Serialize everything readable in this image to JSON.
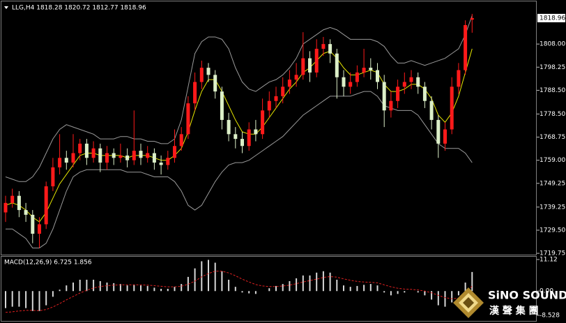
{
  "chart_data": [
    {
      "type": "candlestick",
      "title": "LLG,H4  1818.28 1820.72 1812.77 1818.96",
      "up_color": "#ff1a1a",
      "down_color": "#dcefc8",
      "open": [
        1737,
        1741,
        1744,
        1738,
        1736,
        1728,
        1732,
        1748,
        1756,
        1760,
        1758,
        1762,
        1766,
        1760,
        1764,
        1758,
        1762,
        1760,
        1761,
        1759,
        1763,
        1760,
        1762,
        1758,
        1757,
        1760,
        1765,
        1770,
        1783,
        1792,
        1798,
        1795,
        1788,
        1776,
        1770,
        1768,
        1765,
        1772,
        1770,
        1780,
        1784,
        1786,
        1790,
        1793,
        1795,
        1802,
        1796,
        1806,
        1808,
        1804,
        1794,
        1790,
        1792,
        1796,
        1798,
        1797,
        1792,
        1780,
        1784,
        1790,
        1792,
        1794,
        1790,
        1784,
        1776,
        1766,
        1772,
        1790,
        1797,
        1818.28
      ],
      "high": [
        1744,
        1747,
        1746,
        1741,
        1738,
        1735,
        1750,
        1760,
        1770,
        1763,
        1770,
        1768,
        1768,
        1767,
        1766,
        1765,
        1764,
        1766,
        1764,
        1780,
        1766,
        1765,
        1764,
        1761,
        1763,
        1772,
        1773,
        1786,
        1796,
        1801,
        1800,
        1797,
        1790,
        1779,
        1773,
        1771,
        1775,
        1776,
        1785,
        1788,
        1790,
        1794,
        1797,
        1800,
        1813,
        1805,
        1810,
        1811,
        1810,
        1806,
        1797,
        1796,
        1799,
        1806,
        1802,
        1800,
        1795,
        1788,
        1793,
        1796,
        1797,
        1796,
        1792,
        1786,
        1778,
        1775,
        1794,
        1800,
        1818,
        1820.72
      ],
      "low": [
        1733,
        1739,
        1735,
        1733,
        1724,
        1722,
        1730,
        1746,
        1753,
        1755,
        1756,
        1759,
        1757,
        1758,
        1754,
        1755,
        1757,
        1758,
        1756,
        1757,
        1757,
        1758,
        1755,
        1753,
        1755,
        1758,
        1763,
        1768,
        1780,
        1789,
        1792,
        1785,
        1772,
        1767,
        1764,
        1762,
        1763,
        1767,
        1768,
        1777,
        1781,
        1783,
        1787,
        1790,
        1793,
        1792,
        1794,
        1803,
        1800,
        1785,
        1786,
        1787,
        1790,
        1794,
        1793,
        1789,
        1773,
        1777,
        1781,
        1787,
        1789,
        1787,
        1781,
        1772,
        1760,
        1763,
        1770,
        1787,
        1795,
        1812.77
      ],
      "close": [
        1741,
        1744,
        1738,
        1736,
        1728,
        1732,
        1748,
        1756,
        1760,
        1758,
        1762,
        1766,
        1760,
        1764,
        1758,
        1762,
        1760,
        1761,
        1759,
        1763,
        1760,
        1762,
        1758,
        1757,
        1760,
        1765,
        1770,
        1783,
        1792,
        1798,
        1795,
        1788,
        1776,
        1770,
        1768,
        1765,
        1772,
        1770,
        1780,
        1784,
        1786,
        1790,
        1793,
        1795,
        1802,
        1796,
        1806,
        1808,
        1804,
        1794,
        1790,
        1792,
        1796,
        1798,
        1797,
        1792,
        1780,
        1784,
        1790,
        1792,
        1794,
        1790,
        1784,
        1776,
        1766,
        1772,
        1790,
        1797,
        1816,
        1818.96
      ],
      "overlays": [
        {
          "color": "#9a9a9a",
          "values": [
            1752,
            1751,
            1750,
            1750,
            1752,
            1756,
            1762,
            1768,
            1772,
            1774,
            1773,
            1772,
            1771,
            1770,
            1768,
            1768,
            1768,
            1769,
            1769,
            1768,
            1768,
            1767,
            1767,
            1766,
            1766,
            1768,
            1776,
            1790,
            1804,
            1809,
            1811,
            1811,
            1810,
            1806,
            1798,
            1792,
            1789,
            1788,
            1790,
            1792,
            1793,
            1795,
            1798,
            1802,
            1808,
            1810,
            1812,
            1814,
            1815,
            1814,
            1812,
            1810,
            1810,
            1810,
            1810,
            1809,
            1807,
            1803,
            1800,
            1800,
            1801,
            1800,
            1799,
            1800,
            1801,
            1802,
            1804,
            1806,
            1812,
            1820
          ]
        },
        {
          "color": "#9a9a9a",
          "values": [
            1730,
            1730,
            1728,
            1726,
            1722,
            1722,
            1724,
            1730,
            1738,
            1746,
            1752,
            1754,
            1755,
            1755,
            1755,
            1755,
            1755,
            1755,
            1754,
            1754,
            1754,
            1753,
            1752,
            1752,
            1752,
            1750,
            1746,
            1740,
            1738,
            1740,
            1745,
            1750,
            1754,
            1757,
            1758,
            1758,
            1759,
            1761,
            1763,
            1765,
            1767,
            1769,
            1772,
            1775,
            1778,
            1780,
            1782,
            1784,
            1786,
            1786,
            1786,
            1786,
            1787,
            1788,
            1788,
            1786,
            1782,
            1781,
            1780,
            1780,
            1780,
            1778,
            1774,
            1770,
            1766,
            1764,
            1764,
            1764,
            1762,
            1758
          ]
        },
        {
          "color": "#e6e600",
          "values": [
            1740,
            1741,
            1740,
            1738,
            1735,
            1733,
            1737,
            1743,
            1749,
            1753,
            1757,
            1761,
            1762,
            1762,
            1761,
            1761,
            1761,
            1761,
            1760,
            1761,
            1761,
            1761,
            1760,
            1759,
            1759,
            1761,
            1764,
            1771,
            1780,
            1788,
            1793,
            1793,
            1788,
            1782,
            1776,
            1771,
            1770,
            1770,
            1773,
            1777,
            1781,
            1785,
            1789,
            1792,
            1796,
            1798,
            1801,
            1804,
            1805,
            1802,
            1798,
            1795,
            1795,
            1796,
            1797,
            1796,
            1791,
            1788,
            1788,
            1789,
            1791,
            1791,
            1789,
            1785,
            1778,
            1775,
            1779,
            1786,
            1796,
            1806
          ]
        }
      ],
      "ylim": [
        1718.9,
        1825.4
      ],
      "yticks": [
        {
          "value": 1808,
          "label": "1808.00"
        },
        1798.25,
        {
          "value": 1788.5,
          "label": "1788.50"
        },
        {
          "value": 1778.5,
          "label": "1778.50"
        },
        1768.75,
        {
          "value": 1759,
          "label": "1759.00"
        },
        1749.25,
        1739.25,
        {
          "value": 1729.5,
          "label": "1729.50"
        },
        1719.75
      ]
    },
    {
      "type": "macd",
      "title": "MACD(12,26,9) 6.725 1.856",
      "histogram": {
        "color": "#d8d8d8",
        "values": [
          -6,
          -5.5,
          -5.5,
          -6,
          -7,
          -7,
          -5,
          -2,
          0.5,
          2,
          3,
          4,
          4,
          4,
          3.5,
          3,
          2.8,
          2.5,
          2,
          2.2,
          2,
          1.8,
          1.2,
          0.8,
          0.8,
          1.5,
          2.5,
          5,
          8,
          10.5,
          11,
          10,
          7,
          4,
          1.5,
          -0.5,
          -0.8,
          -1,
          0,
          1,
          1.8,
          2.5,
          3.5,
          4.5,
          5.5,
          5.5,
          6.5,
          7,
          6.5,
          4,
          2,
          1.5,
          1.8,
          2.2,
          2.5,
          2,
          -0.5,
          -1.5,
          -1,
          -0.5,
          0,
          -0.5,
          -1.5,
          -3,
          -5,
          -5.5,
          -4,
          -1.5,
          3,
          6.725
        ]
      },
      "signal": {
        "color": "#e02020",
        "values": [
          -7.5,
          -7.3,
          -7,
          -6.8,
          -6.8,
          -6.9,
          -6.5,
          -5.6,
          -4.4,
          -3.1,
          -1.9,
          -0.7,
          0.3,
          1.1,
          1.6,
          1.9,
          2.1,
          2.2,
          2.2,
          2.2,
          2.2,
          2.1,
          1.9,
          1.7,
          1.5,
          1.5,
          1.7,
          2.4,
          3.5,
          5,
          6.2,
          7,
          7,
          6.4,
          5.4,
          4.2,
          3.2,
          2.3,
          1.8,
          1.6,
          1.6,
          1.8,
          2.1,
          2.6,
          3.2,
          3.7,
          4.2,
          4.8,
          5.1,
          4.9,
          4.3,
          3.8,
          3.4,
          3.2,
          3.1,
          2.9,
          2.2,
          1.5,
          1,
          0.7,
          0.6,
          0.4,
          0,
          -0.6,
          -1.5,
          -2.3,
          -2.7,
          -2.5,
          -1.4,
          1.856
        ]
      },
      "ylim": [
        -10.75,
        12.1
      ],
      "yticks": [
        11.12,
        {
          "value": 0,
          "label": "0.00"
        },
        -8.528
      ]
    }
  ],
  "logo": {
    "name": "SiNO SOUND",
    "subtitle": "漢 聲 集 團"
  }
}
